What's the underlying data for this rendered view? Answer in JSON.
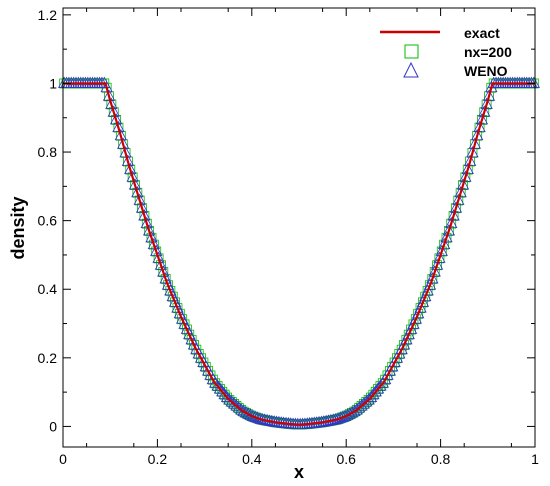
{
  "chart_data": {
    "type": "line",
    "title": "",
    "xlabel": "x",
    "ylabel": "density",
    "xlim": [
      0,
      1
    ],
    "ylim": [
      -0.06,
      1.22
    ],
    "x_ticks": [
      0,
      0.2,
      0.4,
      0.6,
      0.8,
      1
    ],
    "x_tick_labels": [
      "0",
      "0.2",
      "0.4",
      "0.6",
      "0.8",
      "1"
    ],
    "y_ticks": [
      0,
      0.2,
      0.4,
      0.6,
      0.8,
      1,
      1.2
    ],
    "y_tick_labels": [
      "0",
      "0.2",
      "0.4",
      "0.6",
      "0.8",
      "1",
      "1.2"
    ],
    "grid": false,
    "legend_position": "top-right",
    "series": [
      {
        "name": "exact",
        "style": "line",
        "color": "#cc0000",
        "x": [
          0,
          0.09,
          0.1,
          0.12,
          0.14,
          0.16,
          0.18,
          0.2,
          0.22,
          0.25,
          0.28,
          0.3,
          0.32,
          0.35,
          0.38,
          0.4,
          0.42,
          0.45,
          0.48,
          0.5,
          0.52,
          0.55,
          0.58,
          0.6,
          0.62,
          0.65,
          0.68,
          0.7,
          0.72,
          0.75,
          0.78,
          0.8,
          0.82,
          0.84,
          0.86,
          0.88,
          0.9,
          0.91,
          1
        ],
        "y": [
          1,
          1,
          0.95,
          0.86,
          0.76,
          0.67,
          0.58,
          0.5,
          0.42,
          0.32,
          0.23,
          0.18,
          0.13,
          0.08,
          0.045,
          0.03,
          0.02,
          0.012,
          0.007,
          0.005,
          0.007,
          0.012,
          0.02,
          0.03,
          0.045,
          0.08,
          0.13,
          0.18,
          0.23,
          0.32,
          0.42,
          0.5,
          0.58,
          0.67,
          0.76,
          0.86,
          0.95,
          1,
          1
        ]
      },
      {
        "name": "nx=200",
        "style": "square-markers",
        "color": "#00bb00"
      },
      {
        "name": "WENO",
        "style": "triangle-markers",
        "color": "#3333cc"
      }
    ]
  }
}
